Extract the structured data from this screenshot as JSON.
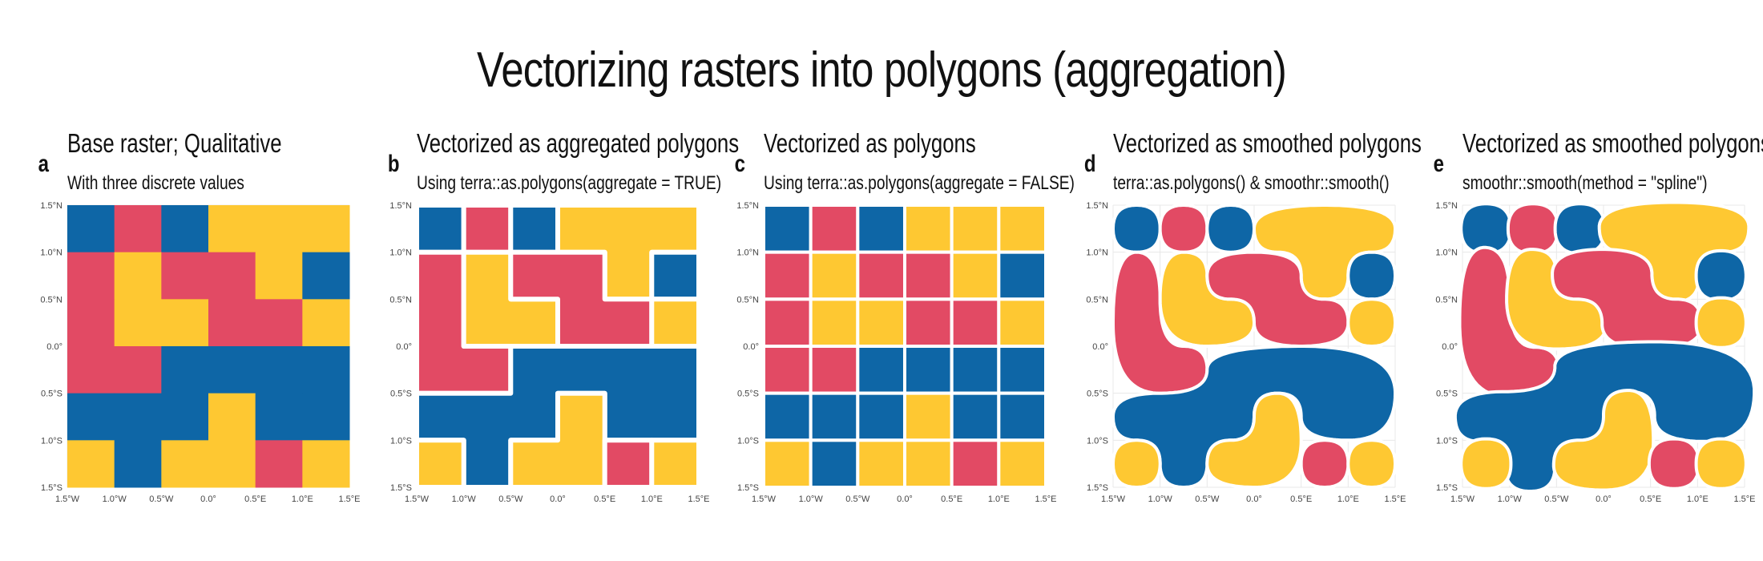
{
  "title": "Vectorizing rasters into polygons (aggregation)",
  "colors": {
    "1": "#e24a64",
    "2": "#fec832",
    "3": "#0e66a6",
    "grid": "#e8e8e8",
    "border": "#ffffff"
  },
  "x_ticks": [
    "1.5°W",
    "1.0°W",
    "0.5°W",
    "0.0°",
    "0.5°E",
    "1.0°E",
    "1.5°E"
  ],
  "y_ticks": [
    "1.5°N",
    "1.0°N",
    "0.5°N",
    "0.0°",
    "0.5°S",
    "1.0°S",
    "1.5°S"
  ],
  "panels": [
    {
      "tag": "a",
      "title": "Base raster; Qualitative",
      "subtitle": "With three discrete values",
      "mode": "raster"
    },
    {
      "tag": "b",
      "title": "Vectorized as aggregated polygons",
      "subtitle": "Using terra::as.polygons(aggregate = TRUE)",
      "mode": "aggregated"
    },
    {
      "tag": "c",
      "title": "Vectorized as polygons",
      "subtitle": "Using terra::as.polygons(aggregate = FALSE)",
      "mode": "cells"
    },
    {
      "tag": "d",
      "title": "Vectorized as smoothed polygons",
      "subtitle": "terra::as.polygons() & smoothr::smooth()",
      "mode": "smooth"
    },
    {
      "tag": "e",
      "title": "Vectorized as smoothed polygons",
      "subtitle": "smoothr::smooth(method = \"spline\")",
      "mode": "spline"
    }
  ],
  "chart_data": {
    "type": "heatmap",
    "value_legend": {
      "1": "red",
      "2": "yellow",
      "3": "blue"
    },
    "x_range": [
      -1.5,
      1.5
    ],
    "y_range": [
      -1.5,
      1.5
    ],
    "grid_rows_top_to_bottom": [
      [
        3,
        1,
        3,
        2,
        2,
        2
      ],
      [
        1,
        2,
        1,
        1,
        2,
        3
      ],
      [
        1,
        2,
        2,
        1,
        1,
        2
      ],
      [
        1,
        1,
        3,
        3,
        3,
        3
      ],
      [
        3,
        3,
        3,
        2,
        3,
        3
      ],
      [
        2,
        3,
        2,
        2,
        1,
        2
      ]
    ]
  }
}
